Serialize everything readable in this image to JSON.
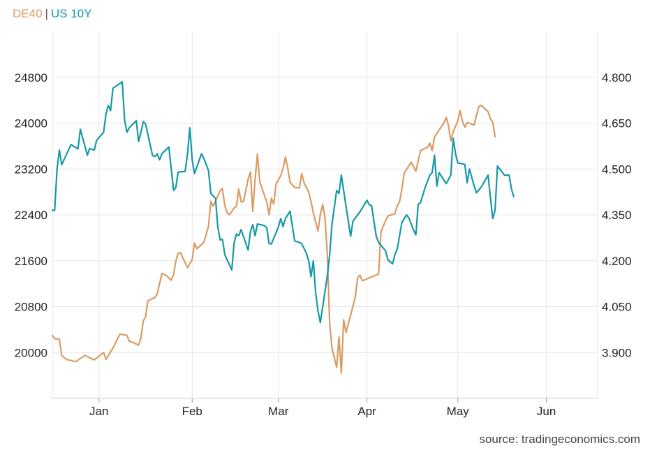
{
  "legend": {
    "series1": "DE40",
    "separator": "|",
    "series2": "US 10Y"
  },
  "source": "source: tradingeconomics.com",
  "colors": {
    "de40": "#DB9B62",
    "us10y": "#1599A6",
    "grid": "#E6E6E6"
  },
  "chart_data": {
    "type": "line",
    "grid": true,
    "legend_placement": "top-left",
    "x_ticks": [
      "Jan",
      "Feb",
      "Mar",
      "Apr",
      "May",
      "Jun"
    ],
    "x_tick_positions": [
      6,
      26,
      44.5,
      63.5,
      83,
      102
    ],
    "x_range": [
      -4,
      113
    ],
    "y_left": {
      "ticks": [
        20000,
        20800,
        21600,
        22400,
        23200,
        24000,
        24800
      ],
      "tick_labels": [
        "20000",
        "20800",
        "21600",
        "22400",
        "23200",
        "24000",
        "24800"
      ],
      "range": [
        19200,
        25600
      ]
    },
    "y_right": {
      "ticks": [
        3.9,
        4.05,
        4.2,
        4.35,
        4.5,
        4.65,
        4.8
      ],
      "tick_labels": [
        "3.900",
        "4.050",
        "4.200",
        "4.350",
        "4.500",
        "4.650",
        "4.800"
      ],
      "range": [
        3.75,
        4.95
      ]
    },
    "series": [
      {
        "name": "DE40",
        "axis": "left",
        "points": [
          [
            -4,
            20300
          ],
          [
            -3.5,
            20240
          ],
          [
            -2.5,
            20230
          ],
          [
            -2,
            19950
          ],
          [
            -1,
            19880
          ],
          [
            1,
            19840
          ],
          [
            3,
            19950
          ],
          [
            5,
            19870
          ],
          [
            7,
            20000
          ],
          [
            7.5,
            19880
          ],
          [
            9,
            20080
          ],
          [
            10.5,
            20320
          ],
          [
            12,
            20300
          ],
          [
            12.5,
            20200
          ],
          [
            14.5,
            20130
          ],
          [
            15,
            20250
          ],
          [
            15.5,
            20550
          ],
          [
            16,
            20620
          ],
          [
            16.5,
            20900
          ],
          [
            18,
            20960
          ],
          [
            18.5,
            21020
          ],
          [
            19.5,
            21380
          ],
          [
            20.5,
            21340
          ],
          [
            21.5,
            21260
          ],
          [
            22,
            21360
          ],
          [
            22.5,
            21600
          ],
          [
            23,
            21730
          ],
          [
            23.5,
            21740
          ],
          [
            24,
            21650
          ],
          [
            25,
            21480
          ],
          [
            26,
            21620
          ],
          [
            26.5,
            21910
          ],
          [
            27,
            21810
          ],
          [
            28.5,
            21920
          ],
          [
            29.5,
            22200
          ],
          [
            30,
            22640
          ],
          [
            30.5,
            22550
          ],
          [
            32,
            22820
          ],
          [
            32.5,
            22860
          ],
          [
            33,
            22560
          ],
          [
            33.5,
            22440
          ],
          [
            34,
            22400
          ],
          [
            35,
            22520
          ],
          [
            35.5,
            22550
          ],
          [
            36,
            22850
          ],
          [
            36.5,
            22630
          ],
          [
            37,
            22630
          ],
          [
            38,
            23020
          ],
          [
            38.5,
            23150
          ],
          [
            39,
            22460
          ],
          [
            39.5,
            23020
          ],
          [
            40,
            23460
          ],
          [
            40.5,
            22980
          ],
          [
            42,
            22620
          ],
          [
            42.5,
            22400
          ],
          [
            43,
            22690
          ],
          [
            43.5,
            22590
          ],
          [
            44,
            22940
          ],
          [
            45,
            23080
          ],
          [
            45.5,
            23210
          ],
          [
            46,
            23410
          ],
          [
            46.5,
            23220
          ],
          [
            47,
            22970
          ],
          [
            48,
            22880
          ],
          [
            49,
            22870
          ],
          [
            49.5,
            23120
          ],
          [
            50,
            22960
          ],
          [
            51,
            22800
          ],
          [
            51.5,
            22630
          ],
          [
            52,
            22430
          ],
          [
            53,
            22120
          ],
          [
            53.5,
            22410
          ],
          [
            54,
            22580
          ],
          [
            54.5,
            22350
          ],
          [
            55,
            21720
          ],
          [
            55.5,
            20500
          ],
          [
            56,
            20080
          ],
          [
            57,
            19740
          ],
          [
            57.5,
            20270
          ],
          [
            58,
            19640
          ],
          [
            58.5,
            20570
          ],
          [
            59,
            20350
          ],
          [
            60,
            20650
          ],
          [
            61,
            20970
          ],
          [
            61.5,
            21300
          ],
          [
            62,
            21350
          ],
          [
            62.5,
            21250
          ],
          [
            64,
            21300
          ],
          [
            66,
            21370
          ],
          [
            66.5,
            22100
          ],
          [
            67.5,
            22300
          ],
          [
            68,
            22380
          ],
          [
            69.5,
            22420
          ],
          [
            70,
            22560
          ],
          [
            70.5,
            22630
          ],
          [
            71,
            22850
          ],
          [
            71.5,
            23130
          ],
          [
            73,
            23320
          ],
          [
            74,
            23160
          ],
          [
            75,
            23520
          ],
          [
            76.5,
            23580
          ],
          [
            77,
            23650
          ],
          [
            77.5,
            23520
          ],
          [
            78,
            23760
          ],
          [
            79,
            23880
          ],
          [
            80,
            24000
          ],
          [
            80.5,
            24100
          ],
          [
            81,
            23960
          ],
          [
            81.5,
            23690
          ],
          [
            82,
            23850
          ],
          [
            83,
            24040
          ],
          [
            83.5,
            24220
          ],
          [
            84,
            24030
          ],
          [
            84.5,
            23930
          ],
          [
            85,
            24010
          ],
          [
            86.5,
            23970
          ],
          [
            87.5,
            24290
          ],
          [
            88,
            24310
          ],
          [
            89.5,
            24200
          ],
          [
            90,
            24070
          ],
          [
            90.5,
            24020
          ],
          [
            91,
            23760
          ]
        ]
      },
      {
        "name": "US 10Y",
        "axis": "right",
        "points": [
          [
            -4,
            4.365
          ],
          [
            -3.5,
            4.365
          ],
          [
            -3,
            4.5
          ],
          [
            -2.5,
            4.562
          ],
          [
            -2,
            4.514
          ],
          [
            0,
            4.58
          ],
          [
            1.5,
            4.566
          ],
          [
            2,
            4.63
          ],
          [
            3.5,
            4.545
          ],
          [
            4,
            4.567
          ],
          [
            5,
            4.562
          ],
          [
            5.5,
            4.594
          ],
          [
            7,
            4.62
          ],
          [
            7.5,
            4.68
          ],
          [
            8,
            4.708
          ],
          [
            8.5,
            4.691
          ],
          [
            9,
            4.764
          ],
          [
            11,
            4.785
          ],
          [
            11.5,
            4.66
          ],
          [
            12,
            4.62
          ],
          [
            12.5,
            4.635
          ],
          [
            14,
            4.658
          ],
          [
            14.5,
            4.59
          ],
          [
            15,
            4.62
          ],
          [
            15.5,
            4.655
          ],
          [
            16,
            4.648
          ],
          [
            17.5,
            4.544
          ],
          [
            18,
            4.541
          ],
          [
            18.5,
            4.55
          ],
          [
            19,
            4.53
          ],
          [
            19.5,
            4.55
          ],
          [
            21,
            4.572
          ],
          [
            22,
            4.43
          ],
          [
            22.5,
            4.44
          ],
          [
            23,
            4.49
          ],
          [
            24.5,
            4.492
          ],
          [
            25,
            4.55
          ],
          [
            25.5,
            4.635
          ],
          [
            26,
            4.53
          ],
          [
            26.5,
            4.485
          ],
          [
            28,
            4.55
          ],
          [
            28.5,
            4.535
          ],
          [
            29.5,
            4.495
          ],
          [
            30,
            4.42
          ],
          [
            31,
            4.405
          ],
          [
            31.5,
            4.31
          ],
          [
            32,
            4.268
          ],
          [
            32.5,
            4.27
          ],
          [
            33,
            4.22
          ],
          [
            34.5,
            4.17
          ],
          [
            35,
            4.258
          ],
          [
            35.5,
            4.288
          ],
          [
            36,
            4.282
          ],
          [
            36.5,
            4.302
          ],
          [
            38,
            4.235
          ],
          [
            38.5,
            4.295
          ],
          [
            39,
            4.318
          ],
          [
            39.5,
            4.282
          ],
          [
            40,
            4.32
          ],
          [
            41.5,
            4.315
          ],
          [
            42,
            4.308
          ],
          [
            42.5,
            4.256
          ],
          [
            43,
            4.255
          ],
          [
            44.5,
            4.31
          ],
          [
            45,
            4.338
          ],
          [
            45.5,
            4.312
          ],
          [
            46,
            4.338
          ],
          [
            47,
            4.362
          ],
          [
            48,
            4.265
          ],
          [
            49,
            4.26
          ],
          [
            49.5,
            4.256
          ],
          [
            50.5,
            4.225
          ],
          [
            51,
            4.2
          ],
          [
            51.5,
            4.148
          ],
          [
            52,
            4.2
          ],
          [
            52.5,
            4.095
          ],
          [
            53,
            4.035
          ],
          [
            53.5,
            3.998
          ],
          [
            55,
            4.15
          ],
          [
            55.5,
            4.22
          ],
          [
            56,
            4.32
          ],
          [
            57,
            4.43
          ],
          [
            57.5,
            4.42
          ],
          [
            58,
            4.48
          ],
          [
            59,
            4.38
          ],
          [
            60,
            4.28
          ],
          [
            60.5,
            4.33
          ],
          [
            62,
            4.36
          ],
          [
            63.5,
            4.398
          ],
          [
            64,
            4.383
          ],
          [
            64.5,
            4.38
          ],
          [
            65.5,
            4.28
          ],
          [
            66,
            4.26
          ],
          [
            67.5,
            4.232
          ],
          [
            68,
            4.203
          ],
          [
            69,
            4.19
          ],
          [
            69.5,
            4.22
          ],
          [
            70,
            4.238
          ],
          [
            71,
            4.325
          ],
          [
            72,
            4.35
          ],
          [
            72.5,
            4.34
          ],
          [
            73.5,
            4.3
          ],
          [
            74,
            4.285
          ],
          [
            74.5,
            4.385
          ],
          [
            75,
            4.39
          ],
          [
            76,
            4.44
          ],
          [
            77,
            4.48
          ],
          [
            77.5,
            4.488
          ],
          [
            78,
            4.545
          ],
          [
            78.5,
            4.444
          ],
          [
            79,
            4.488
          ],
          [
            80.5,
            4.452
          ],
          [
            81.5,
            4.48
          ],
          [
            82,
            4.6
          ],
          [
            82.5,
            4.55
          ],
          [
            83,
            4.52
          ],
          [
            84.5,
            4.515
          ],
          [
            85,
            4.455
          ],
          [
            85.5,
            4.5
          ],
          [
            86.5,
            4.445
          ],
          [
            87,
            4.422
          ],
          [
            88,
            4.44
          ],
          [
            89.5,
            4.48
          ],
          [
            90,
            4.405
          ],
          [
            90.5,
            4.338
          ],
          [
            91,
            4.365
          ],
          [
            91.5,
            4.51
          ],
          [
            93,
            4.48
          ],
          [
            94,
            4.48
          ],
          [
            94.5,
            4.435
          ],
          [
            95,
            4.41
          ]
        ]
      }
    ]
  }
}
